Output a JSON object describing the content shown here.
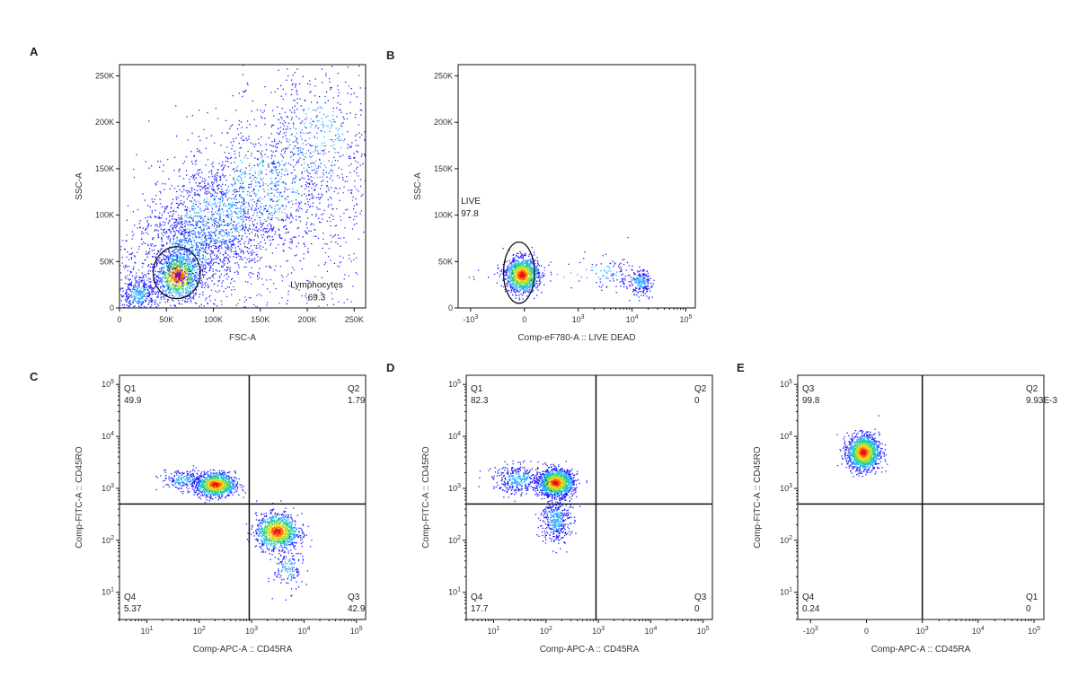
{
  "chart_data": [
    {
      "id": "A",
      "panel_label": "A",
      "type": "scatter",
      "xlabel": "FSC-A",
      "ylabel": "SSC-A",
      "xlim": [
        0,
        262144
      ],
      "ylim": [
        0,
        262144
      ],
      "xticks": [
        {
          "v": 0,
          "label": "0"
        },
        {
          "v": 50000,
          "label": "50K"
        },
        {
          "v": 100000,
          "label": "100K"
        },
        {
          "v": 150000,
          "label": "150K"
        },
        {
          "v": 200000,
          "label": "200K"
        },
        {
          "v": 250000,
          "label": "250K"
        }
      ],
      "yticks": [
        {
          "v": 0,
          "label": "0"
        },
        {
          "v": 50000,
          "label": "50K"
        },
        {
          "v": 100000,
          "label": "100K"
        },
        {
          "v": 150000,
          "label": "150K"
        },
        {
          "v": 200000,
          "label": "200K"
        },
        {
          "v": 250000,
          "label": "250K"
        }
      ],
      "populations": [
        {
          "cx": 62000,
          "cy": 35000,
          "sx": 11000,
          "sy": 12000,
          "n": 900,
          "hot": true
        },
        {
          "cx": 72000,
          "cy": 60000,
          "sx": 25000,
          "sy": 22000,
          "n": 700,
          "hot": false
        },
        {
          "cx": 100000,
          "cy": 95000,
          "sx": 35000,
          "sy": 30000,
          "n": 900,
          "hot": false
        },
        {
          "cx": 150000,
          "cy": 130000,
          "sx": 45000,
          "sy": 40000,
          "n": 800,
          "hot": false
        },
        {
          "cx": 210000,
          "cy": 180000,
          "sx": 35000,
          "sy": 45000,
          "n": 500,
          "hot": false
        },
        {
          "cx": 20000,
          "cy": 15000,
          "sx": 10000,
          "sy": 10000,
          "n": 350,
          "hot": false
        }
      ],
      "gate": {
        "type": "ellipse",
        "cx": 61000,
        "cy": 38000,
        "rx": 25000,
        "ry": 28000,
        "name": "Lymphocytes",
        "value": "69.3",
        "label_x": 210000,
        "label_y": 22000
      }
    },
    {
      "id": "B",
      "panel_label": "B",
      "type": "scatter",
      "xlabel": "Comp-eF780-A :: LIVE DEAD",
      "ylabel": "SSC-A",
      "xlim": [
        -1700,
        150000
      ],
      "ylim": [
        0,
        262144
      ],
      "xticks": [
        {
          "v": -1000,
          "label": "-10",
          "sup": "3"
        },
        {
          "v": 0,
          "label": "0"
        },
        {
          "v": 1000,
          "label": "10",
          "sup": "3"
        },
        {
          "v": 10000,
          "label": "10",
          "sup": "4"
        },
        {
          "v": 100000,
          "label": "10",
          "sup": "5"
        }
      ],
      "yticks": [
        {
          "v": 0,
          "label": "0"
        },
        {
          "v": 50000,
          "label": "50K"
        },
        {
          "v": 100000,
          "label": "100K"
        },
        {
          "v": 150000,
          "label": "150K"
        },
        {
          "v": 200000,
          "label": "200K"
        },
        {
          "v": 250000,
          "label": "250K"
        }
      ],
      "populations": [
        {
          "cx": -50,
          "cy": 36000,
          "sx": 150,
          "sy": 9000,
          "n": 1300,
          "hot": true
        },
        {
          "cx": 2500,
          "cy": 38000,
          "sx": 3000,
          "sy": 9000,
          "n": 120,
          "hot": false
        },
        {
          "cx": 14000,
          "cy": 28000,
          "sx": 4000,
          "sy": 7000,
          "n": 220,
          "hot": false
        }
      ],
      "gate": {
        "type": "ellipse",
        "cx": -100,
        "cy": 38000,
        "rx_frac": 0.065,
        "ry": 33000,
        "name": "LIVE",
        "value": "97.8",
        "label_x": -1500,
        "label_y": 112000
      }
    },
    {
      "id": "C",
      "panel_label": "C",
      "type": "scatter",
      "xlabel": "Comp-APC-A :: CD45RA",
      "ylabel": "Comp-FITC-A :: CD45RO",
      "xscale": "log",
      "yscale": "log",
      "xlim": [
        3,
        150000
      ],
      "ylim": [
        3,
        150000
      ],
      "xticks": [
        {
          "v": 10,
          "label": "10",
          "sup": "1"
        },
        {
          "v": 100,
          "label": "10",
          "sup": "2"
        },
        {
          "v": 1000,
          "label": "10",
          "sup": "3"
        },
        {
          "v": 10000,
          "label": "10",
          "sup": "4"
        },
        {
          "v": 100000,
          "label": "10",
          "sup": "5"
        }
      ],
      "yticks": [
        {
          "v": 10,
          "label": "10",
          "sup": "1"
        },
        {
          "v": 100,
          "label": "10",
          "sup": "2"
        },
        {
          "v": 1000,
          "label": "10",
          "sup": "3"
        },
        {
          "v": 10000,
          "label": "10",
          "sup": "4"
        },
        {
          "v": 100000,
          "label": "10",
          "sup": "5"
        }
      ],
      "populations": [
        {
          "cx": 200,
          "cy": 1200,
          "sx": 2.2,
          "sy": 1.6,
          "n": 1100,
          "hot": true
        },
        {
          "cx": 3000,
          "cy": 150,
          "sx": 2.3,
          "sy": 2.0,
          "n": 1100,
          "hot": true
        },
        {
          "cx": 50,
          "cy": 1500,
          "sx": 2.5,
          "sy": 1.5,
          "n": 200,
          "hot": false
        },
        {
          "cx": 5000,
          "cy": 30,
          "sx": 1.8,
          "sy": 2.5,
          "n": 150,
          "hot": false
        }
      ],
      "quadrant": {
        "x": 900,
        "y": 500
      },
      "quadrant_labels": [
        {
          "name": "Q1",
          "value": "49.9",
          "pos": "top-left"
        },
        {
          "name": "Q2",
          "value": "1.79",
          "pos": "top-right"
        },
        {
          "name": "Q4",
          "value": "5.37",
          "pos": "bottom-left"
        },
        {
          "name": "Q3",
          "value": "42.9",
          "pos": "bottom-right"
        }
      ]
    },
    {
      "id": "D",
      "panel_label": "D",
      "type": "scatter",
      "xlabel": "Comp-APC-A :: CD45RA",
      "ylabel": "Comp-FITC-A :: CD45RO",
      "xscale": "log",
      "yscale": "log",
      "xlim": [
        3,
        150000
      ],
      "ylim": [
        3,
        150000
      ],
      "xticks": [
        {
          "v": 10,
          "label": "10",
          "sup": "1"
        },
        {
          "v": 100,
          "label": "10",
          "sup": "2"
        },
        {
          "v": 1000,
          "label": "10",
          "sup": "3"
        },
        {
          "v": 10000,
          "label": "10",
          "sup": "4"
        },
        {
          "v": 100000,
          "label": "10",
          "sup": "5"
        }
      ],
      "yticks": [
        {
          "v": 10,
          "label": "10",
          "sup": "1"
        },
        {
          "v": 100,
          "label": "10",
          "sup": "2"
        },
        {
          "v": 1000,
          "label": "10",
          "sup": "3"
        },
        {
          "v": 10000,
          "label": "10",
          "sup": "4"
        },
        {
          "v": 100000,
          "label": "10",
          "sup": "5"
        }
      ],
      "populations": [
        {
          "cx": 150,
          "cy": 1300,
          "sx": 2.0,
          "sy": 1.7,
          "n": 1500,
          "hot": true
        },
        {
          "cx": 30,
          "cy": 1500,
          "sx": 2.8,
          "sy": 1.8,
          "n": 350,
          "hot": false
        },
        {
          "cx": 150,
          "cy": 250,
          "sx": 1.8,
          "sy": 2.5,
          "n": 400,
          "hot": false
        }
      ],
      "quadrant": {
        "x": 900,
        "y": 500
      },
      "quadrant_labels": [
        {
          "name": "Q1",
          "value": "82.3",
          "pos": "top-left"
        },
        {
          "name": "Q2",
          "value": "0",
          "pos": "top-right"
        },
        {
          "name": "Q4",
          "value": "17.7",
          "pos": "bottom-left"
        },
        {
          "name": "Q3",
          "value": "0",
          "pos": "bottom-right"
        }
      ]
    },
    {
      "id": "E",
      "panel_label": "E",
      "type": "scatter",
      "xlabel": "Comp-APC-A :: CD45RA",
      "ylabel": "Comp-FITC-A :: CD45RO",
      "xscale": "biex",
      "yscale": "log",
      "xlim": [
        -1700,
        150000
      ],
      "ylim": [
        3,
        150000
      ],
      "xticks": [
        {
          "v": -1000,
          "label": "-10",
          "sup": "3"
        },
        {
          "v": 0,
          "label": "0"
        },
        {
          "v": 1000,
          "label": "10",
          "sup": "3"
        },
        {
          "v": 10000,
          "label": "10",
          "sup": "4"
        },
        {
          "v": 100000,
          "label": "10",
          "sup": "5"
        }
      ],
      "yticks": [
        {
          "v": 10,
          "label": "10",
          "sup": "1"
        },
        {
          "v": 100,
          "label": "10",
          "sup": "2"
        },
        {
          "v": 1000,
          "label": "10",
          "sup": "3"
        },
        {
          "v": 10000,
          "label": "10",
          "sup": "4"
        },
        {
          "v": 100000,
          "label": "10",
          "sup": "5"
        }
      ],
      "populations": [
        {
          "cx": -60,
          "cy": 5000,
          "sx": 140,
          "sy": 2.0,
          "n": 1500,
          "hot": true
        }
      ],
      "quadrant": {
        "x": 1000,
        "y": 500
      },
      "quadrant_labels": [
        {
          "name": "Q3",
          "value": "99.8",
          "pos": "top-left"
        },
        {
          "name": "Q2",
          "value": "9.93E-3",
          "pos": "top-right"
        },
        {
          "name": "Q4",
          "value": "0.24",
          "pos": "bottom-left"
        },
        {
          "name": "Q1",
          "value": "0",
          "pos": "bottom-right"
        }
      ]
    }
  ],
  "colors": {
    "sparse": "#1a1aff",
    "low": "#2aa8ff",
    "mid": "#1fd0a0",
    "midhigh": "#9be03a",
    "high": "#ffd21a",
    "hot": "#ff6a00",
    "core": "#e0141a"
  }
}
